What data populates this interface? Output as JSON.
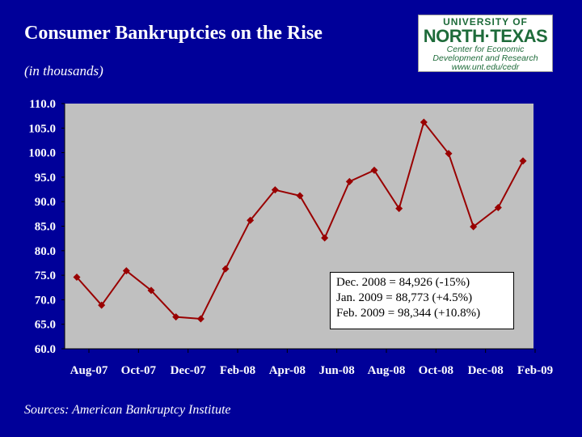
{
  "title": "Consumer Bankruptcies on the Rise",
  "subtitle": "(in thousands)",
  "source": "Sources: American Bankruptcy Institute",
  "logo": {
    "line1": "UNIVERSITY OF",
    "line2": "NORTH·TEXAS",
    "line3": "Center for Economic",
    "line4": "Development and Research",
    "line5": "www.unt.edu/cedr"
  },
  "annotation": {
    "lines": [
      "Dec. 2008 = 84,926 (-15%)",
      "Jan. 2009 = 88,773 (+4.5%)",
      "Feb. 2009 = 98,344 (+10.8%)"
    ]
  },
  "colors": {
    "background": "#000099",
    "plot_area": "#c0c0c0",
    "line": "#990000",
    "marker": "#990000",
    "text": "#ffffff"
  },
  "chart_data": {
    "type": "line",
    "ylim": [
      60.0,
      110.0
    ],
    "yticks": [
      "60.0",
      "65.0",
      "70.0",
      "75.0",
      "80.0",
      "85.0",
      "90.0",
      "95.0",
      "100.0",
      "105.0",
      "110.0"
    ],
    "xtick_labels": [
      "Aug-07",
      "Oct-07",
      "Dec-07",
      "Feb-08",
      "Apr-08",
      "Jun-08",
      "Aug-08",
      "Oct-08",
      "Dec-08",
      "Feb-09"
    ],
    "grid": false,
    "legend": "none",
    "series": [
      {
        "x": [
          "Aug-07",
          "Sep-07",
          "Oct-07",
          "Nov-07",
          "Dec-07",
          "Jan-08",
          "Feb-08",
          "Mar-08",
          "Apr-08",
          "May-08",
          "Jun-08",
          "Jul-08",
          "Aug-08",
          "Sep-08",
          "Oct-08",
          "Nov-08",
          "Dec-08",
          "Jan-09",
          "Feb-09"
        ],
        "values": [
          74.6,
          68.9,
          75.9,
          71.9,
          66.5,
          66.1,
          76.3,
          86.2,
          92.4,
          91.2,
          82.6,
          94.1,
          96.4,
          88.6,
          106.2,
          99.8,
          84.9,
          88.8,
          98.3
        ]
      }
    ]
  }
}
